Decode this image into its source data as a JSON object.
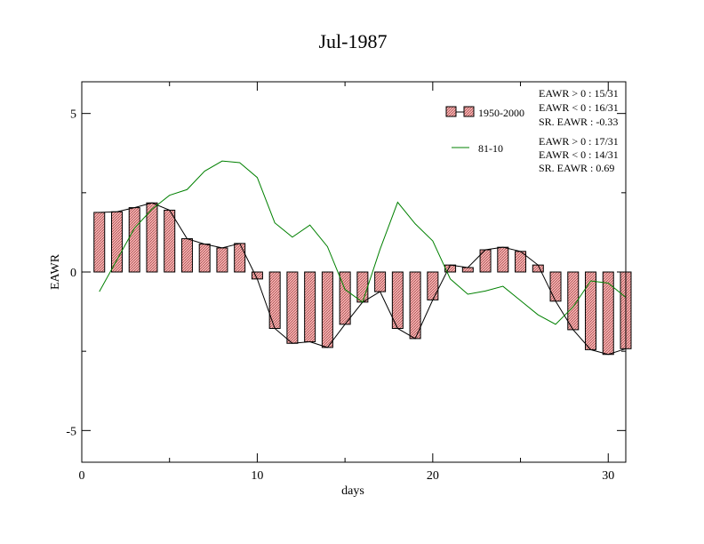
{
  "chart_data": {
    "type": "bar",
    "title": "Jul-1987",
    "xlabel": "days",
    "ylabel": "EAWR",
    "xlim": [
      0,
      31
    ],
    "ylim": [
      -6,
      6
    ],
    "x_ticks": [
      {
        "value": 0,
        "label": "0"
      },
      {
        "value": 10,
        "label": "10"
      },
      {
        "value": 20,
        "label": "20"
      },
      {
        "value": 30,
        "label": "30"
      }
    ],
    "y_ticks": [
      {
        "value": 5,
        "label": "5"
      },
      {
        "value": 0,
        "label": "0"
      },
      {
        "value": -5,
        "label": "-5"
      }
    ],
    "grid": false,
    "legend_position": "top-right",
    "series": [
      {
        "name": "1950-2000",
        "type": "bar",
        "color": "#f4a6a6",
        "x": [
          1,
          2,
          3,
          4,
          5,
          6,
          7,
          8,
          9,
          10,
          11,
          12,
          13,
          14,
          15,
          16,
          17,
          18,
          19,
          20,
          21,
          22,
          23,
          24,
          25,
          26,
          27,
          28,
          29,
          30,
          31
        ],
        "values": [
          1.88,
          1.9,
          2.03,
          2.18,
          1.95,
          1.05,
          0.88,
          0.76,
          0.9,
          -0.22,
          -1.78,
          -2.25,
          -2.2,
          -2.38,
          -1.65,
          -0.95,
          -0.62,
          -1.78,
          -2.1,
          -0.88,
          0.22,
          0.14,
          0.7,
          0.78,
          0.65,
          0.22,
          -0.92,
          -1.82,
          -2.45,
          -2.6,
          -2.42
        ]
      },
      {
        "name": "81-10",
        "type": "line",
        "color": "#008000",
        "x": [
          1,
          2,
          3,
          4,
          5,
          6,
          7,
          8,
          9,
          10,
          11,
          12,
          13,
          14,
          15,
          16,
          17,
          18,
          19,
          20,
          21,
          22,
          23,
          24,
          25,
          26,
          27,
          28,
          29,
          30,
          31
        ],
        "values": [
          -0.62,
          0.38,
          1.38,
          1.98,
          2.42,
          2.6,
          3.18,
          3.5,
          3.45,
          2.98,
          1.55,
          1.1,
          1.48,
          0.8,
          -0.55,
          -0.95,
          0.72,
          2.2,
          1.52,
          0.98,
          -0.22,
          -0.7,
          -0.6,
          -0.45,
          -0.9,
          -1.35,
          -1.65,
          -1.1,
          -0.28,
          -0.35,
          -0.8
        ]
      }
    ],
    "annotations": {
      "group1": [
        "EAWR > 0 : 15/31",
        "EAWR < 0 : 16/31",
        "SR. EAWR : -0.33"
      ],
      "group2": [
        "EAWR > 0 : 17/31",
        "EAWR < 0 : 14/31",
        "SR. EAWR :  0.69"
      ]
    }
  }
}
